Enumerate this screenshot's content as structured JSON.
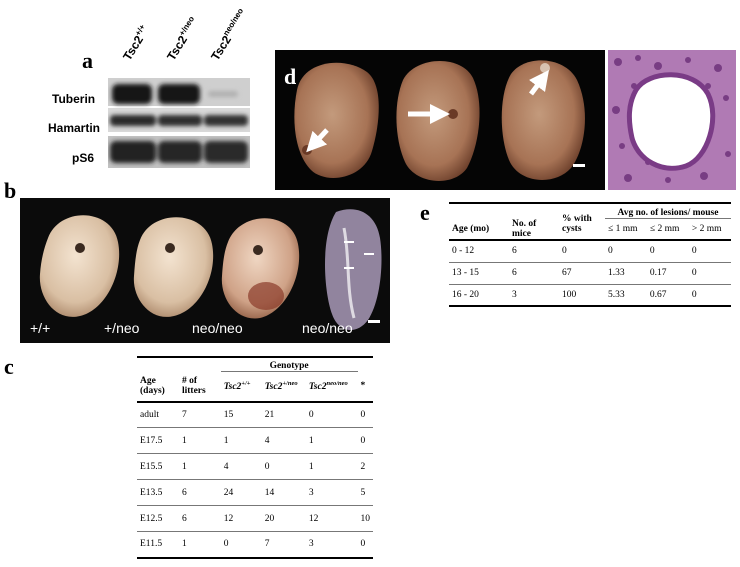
{
  "panels": {
    "a": "a",
    "b": "b",
    "c": "c",
    "d": "d",
    "e": "e"
  },
  "blot": {
    "lanes": [
      {
        "base": "Tsc2",
        "sup": "+/+"
      },
      {
        "base": "Tsc2",
        "sup": "+/neo"
      },
      {
        "base": "Tsc2",
        "sup": "neo/neo"
      }
    ],
    "rows": [
      "Tuberin",
      "Hamartin",
      "pS6"
    ]
  },
  "embryos": {
    "labels": [
      "+/+",
      "+/neo",
      "neo/neo",
      "neo/neo"
    ]
  },
  "table_e": {
    "headers": {
      "age": "Age (mo)",
      "mice": "No. of mice",
      "pct": "% with cysts",
      "avg": "Avg no. of lesions/ mouse",
      "le1": "≤ 1 mm",
      "le2": "≤ 2 mm",
      "gt2": "> 2 mm"
    },
    "rows": [
      [
        "0 - 12",
        "6",
        "0",
        "0",
        "0",
        "0"
      ],
      [
        "13 - 15",
        "6",
        "67",
        "1.33",
        "0.17",
        "0"
      ],
      [
        "16 - 20",
        "3",
        "100",
        "5.33",
        "0.67",
        "0"
      ]
    ]
  },
  "table_c": {
    "headers": {
      "genotype": "Genotype",
      "age": "Age (days)",
      "litters": "# of litters",
      "wt_base": "Tsc2",
      "wt_sup": "+/+",
      "het_base": "Tsc2",
      "het_sup": "+/neo",
      "hom_base": "Tsc2",
      "hom_sup": "neo/neo",
      "star": "*"
    },
    "rows": [
      [
        "adult",
        "7",
        "15",
        "21",
        "0",
        "0"
      ],
      [
        "E17.5",
        "1",
        "1",
        "4",
        "1",
        "0"
      ],
      [
        "E15.5",
        "1",
        "4",
        "0",
        "1",
        "2"
      ],
      [
        "E13.5",
        "6",
        "24",
        "14",
        "3",
        "5"
      ],
      [
        "E12.5",
        "6",
        "12",
        "20",
        "12",
        "10"
      ],
      [
        "E11.5",
        "1",
        "0",
        "7",
        "3",
        "0"
      ]
    ]
  }
}
